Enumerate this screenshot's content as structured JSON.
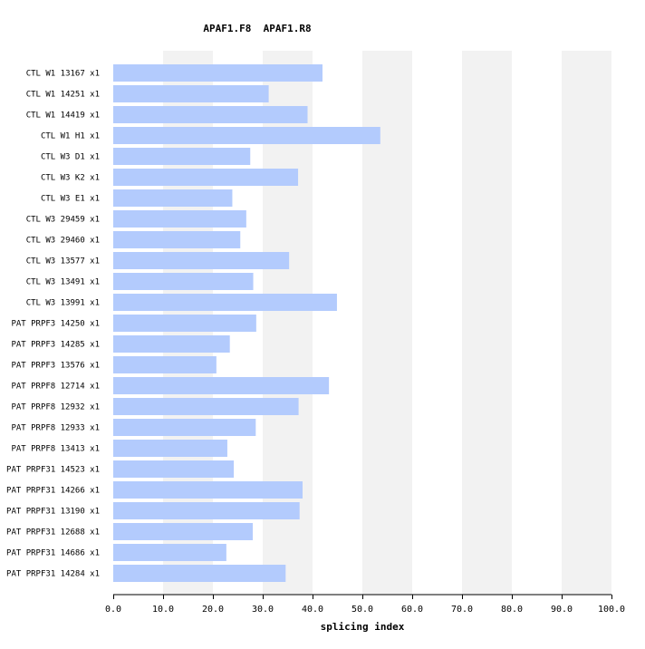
{
  "chart_data": {
    "type": "bar",
    "orientation": "horizontal",
    "title": "APAF1.F8  APAF1.R8",
    "xlabel": "splicing index",
    "ylabel": "",
    "xlim": [
      0,
      100
    ],
    "xticks": [
      "0.0",
      "10.0",
      "20.0",
      "30.0",
      "40.0",
      "50.0",
      "60.0",
      "70.0",
      "80.0",
      "90.0",
      "100.0"
    ],
    "grid": "alternating vertical bands",
    "categories": [
      "CTL W1 13167 x1",
      "CTL W1 14251 x1",
      "CTL W1 14419 x1",
      "CTL W1 H1 x1",
      "CTL W3 D1 x1",
      "CTL W3 K2 x1",
      "CTL W3 E1 x1",
      "CTL W3 29459 x1",
      "CTL W3 29460 x1",
      "CTL W3 13577 x1",
      "CTL W3 13491 x1",
      "CTL W3 13991 x1",
      "PAT PRPF3 14250 x1",
      "PAT PRPF3 14285 x1",
      "PAT PRPF3 13576 x1",
      "PAT PRPF8 12714 x1",
      "PAT PRPF8 12932 x1",
      "PAT PRPF8 12933 x1",
      "PAT PRPF8 13413 x1",
      "PAT PRPF31 14523 x1",
      "PAT PRPF31 14266 x1",
      "PAT PRPF31 13190 x1",
      "PAT PRPF31 12688 x1",
      "PAT PRPF31 14686 x1",
      "PAT PRPF31 14284 x1"
    ],
    "values": [
      42.0,
      31.2,
      39.0,
      53.6,
      27.5,
      37.1,
      23.9,
      26.7,
      25.5,
      35.3,
      28.1,
      44.9,
      28.7,
      23.4,
      20.7,
      43.3,
      37.2,
      28.6,
      22.9,
      24.2,
      38.0,
      37.4,
      28.0,
      22.7,
      34.6
    ],
    "colors": {
      "bar": "#b3cbfd",
      "band": "#f2f2f2",
      "axis": "#000000",
      "text": "#000000"
    }
  }
}
